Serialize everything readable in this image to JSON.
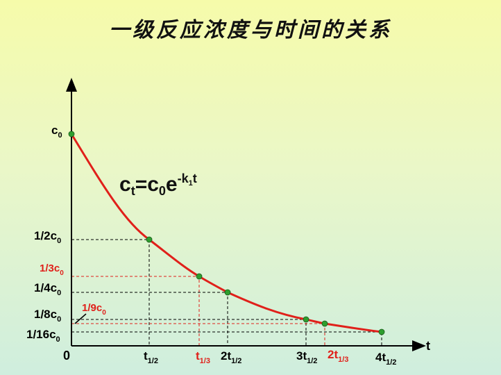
{
  "title": "一级反应浓度与时间的关系",
  "equation": {
    "c": "c",
    "t_sub": "t",
    "eq": "=",
    "c0": "c",
    "zero_sub": "0",
    "e": "e",
    "exp": "-k",
    "k_sub": "1",
    "t": "t"
  },
  "axis": {
    "origin": "0",
    "x_label": "t"
  },
  "y_labels": [
    {
      "main": "c",
      "sub": "0",
      "color": "#000000"
    },
    {
      "main": "1/2c",
      "sub": "0",
      "color": "#000000"
    },
    {
      "main": "1/3c",
      "sub": "0",
      "color": "#e0201a"
    },
    {
      "main": "1/4c",
      "sub": "0",
      "color": "#000000"
    },
    {
      "main": "1/9c",
      "sub": "0",
      "color": "#e0201a"
    },
    {
      "main": "1/8c",
      "sub": "0",
      "color": "#000000"
    },
    {
      "main": "1/16c",
      "sub": "0",
      "color": "#000000"
    }
  ],
  "x_labels": [
    {
      "main": "t",
      "sub": "1/2",
      "color": "#000000"
    },
    {
      "main": "t",
      "sub": "1/3",
      "color": "#e0201a"
    },
    {
      "main": "2t",
      "sub": "1/2",
      "color": "#000000"
    },
    {
      "main": "3t",
      "sub": "1/2",
      "color": "#000000"
    },
    {
      "main": "2t",
      "sub": "1/3",
      "color": "#e0201a"
    },
    {
      "main": "4t",
      "sub": "1/2",
      "color": "#000000"
    }
  ],
  "colors": {
    "curve": "#e0201a",
    "point": "#2e9e2e",
    "axis": "#000000",
    "red_label": "#e0201a"
  }
}
